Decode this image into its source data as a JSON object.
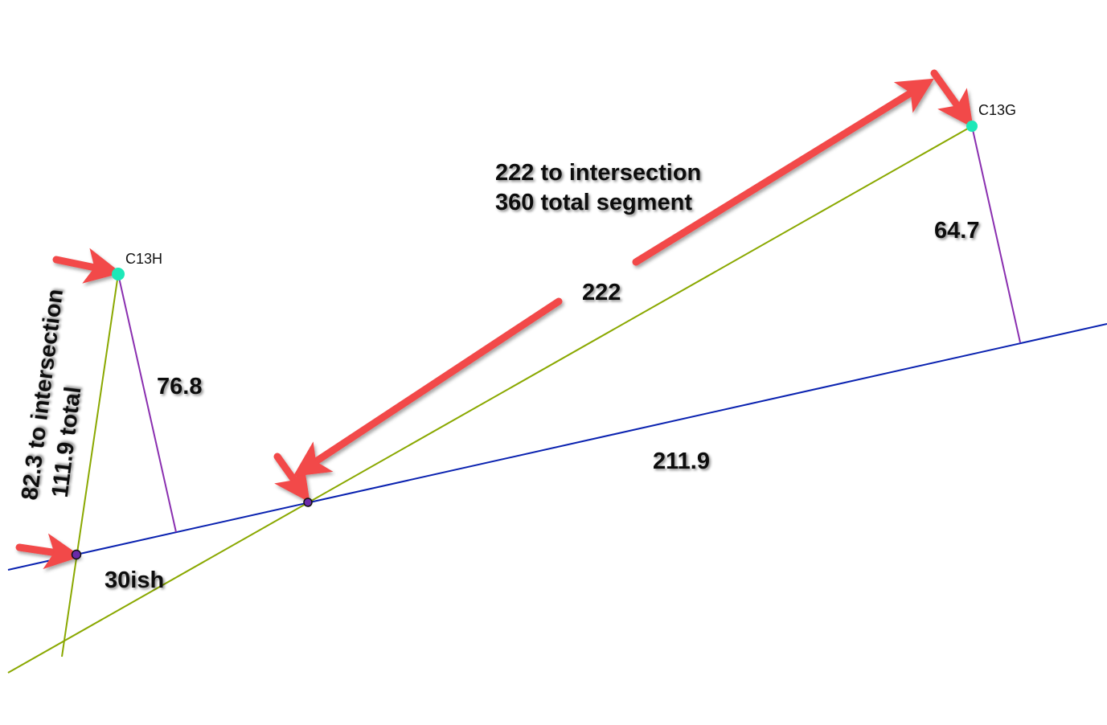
{
  "points": {
    "c13h": "C13H",
    "c13g": "C13G"
  },
  "labels": {
    "perp_c13h": "76.8",
    "perp_c13g": "64.7",
    "segment_222": "222",
    "baseline_211": "211.9",
    "gap_30": "30ish",
    "long_note_line1": "222 to intersection",
    "long_note_line2": "360 total segment",
    "short_note_line1": "82.3 to intersection",
    "short_note_line2": "111.9 total"
  },
  "colors": {
    "baseline": "#0a22b0",
    "segment": "#8aa800",
    "perpendicular": "#8a2fb0",
    "point": "#1de8b8",
    "intersection": "#6a2aa8",
    "arrow": "#f24848"
  }
}
